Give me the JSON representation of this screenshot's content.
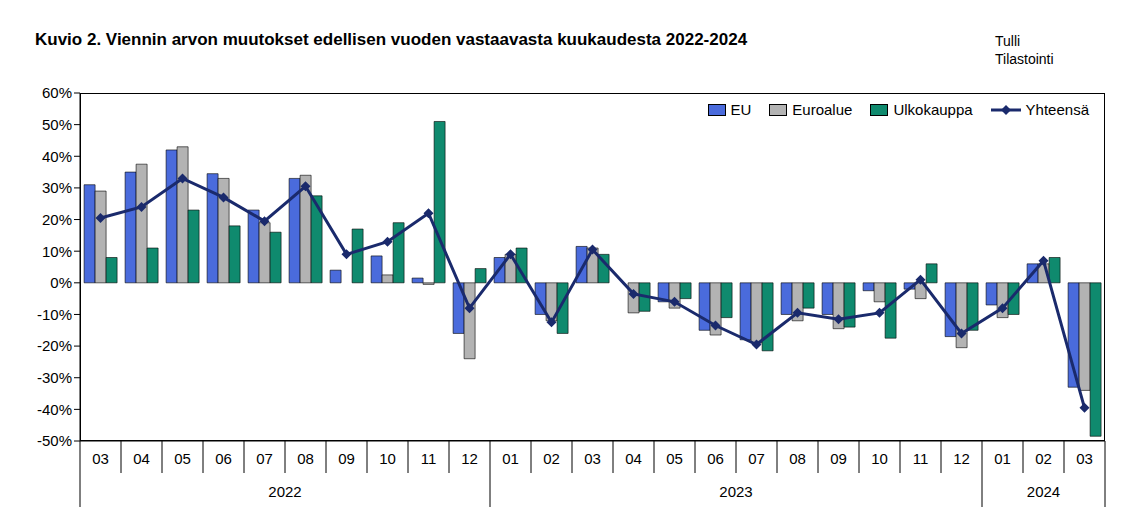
{
  "chart_data": {
    "type": "bar",
    "title": "Kuvio 2. Viennin arvon muutokset edellisen vuoden vastaavasta kuukaudesta 2022-2024",
    "source": [
      "Tulli",
      "Tilastointi"
    ],
    "categories": [
      "03",
      "04",
      "05",
      "06",
      "07",
      "08",
      "09",
      "10",
      "11",
      "12",
      "01",
      "02",
      "03",
      "04",
      "05",
      "06",
      "07",
      "08",
      "09",
      "10",
      "11",
      "12",
      "01",
      "02",
      "03"
    ],
    "groups": [
      {
        "label": "2022",
        "span": 10
      },
      {
        "label": "2023",
        "span": 12
      },
      {
        "label": "2024",
        "span": 3
      }
    ],
    "series": [
      {
        "name": "EU",
        "type": "bar",
        "color": "#4a6bdc",
        "values": [
          31,
          35,
          42,
          34.5,
          23,
          33,
          4,
          8.5,
          1.5,
          -16,
          8,
          -10,
          11.5,
          0,
          -6,
          -15,
          -18,
          -10,
          -10,
          -2.5,
          -2,
          -17,
          -7,
          6,
          -33
        ]
      },
      {
        "name": "Euroalue",
        "type": "bar",
        "color": "#b3b3b3",
        "values": [
          29,
          37.5,
          43,
          33,
          19,
          34,
          0,
          2.5,
          -0.5,
          -24,
          9,
          -12,
          11,
          -9.5,
          -8,
          -16.5,
          -19,
          -12,
          -14.5,
          -6,
          -5,
          -20.5,
          -11,
          6,
          -34
        ]
      },
      {
        "name": "Ulkokauppa",
        "type": "bar",
        "color": "#0f8a6e",
        "values": [
          8,
          11,
          23,
          18,
          16,
          27.5,
          17,
          19,
          51,
          4.5,
          11,
          -16,
          9,
          -9,
          -5,
          -11,
          -21.5,
          -8,
          -14,
          -17.5,
          6,
          -15,
          -10,
          8,
          -48.5
        ]
      },
      {
        "name": "Yhteensä",
        "type": "line",
        "color": "#1a2a6c",
        "marker": "diamond",
        "values": [
          20.5,
          24,
          33,
          27,
          19.5,
          30.5,
          9,
          13,
          22,
          -8,
          9,
          -12.5,
          10.5,
          -3.5,
          -6,
          -13.5,
          -19.5,
          -9.5,
          -11.5,
          -9.5,
          1,
          -16,
          -8,
          7,
          -39.5
        ]
      }
    ],
    "ylim": [
      -50,
      60
    ],
    "yticks": [
      {
        "value": -50,
        "label": "-50%"
      },
      {
        "value": -40,
        "label": "-40%"
      },
      {
        "value": -30,
        "label": "-30%"
      },
      {
        "value": -20,
        "label": "-20%"
      },
      {
        "value": -10,
        "label": "-10%"
      },
      {
        "value": 0,
        "label": "0%"
      },
      {
        "value": 10,
        "label": "10%"
      },
      {
        "value": 20,
        "label": "20%"
      },
      {
        "value": 30,
        "label": "30%"
      },
      {
        "value": 40,
        "label": "40%"
      },
      {
        "value": 50,
        "label": "50%"
      },
      {
        "value": 60,
        "label": "60%"
      }
    ],
    "grid": false,
    "legend": "upper right"
  }
}
